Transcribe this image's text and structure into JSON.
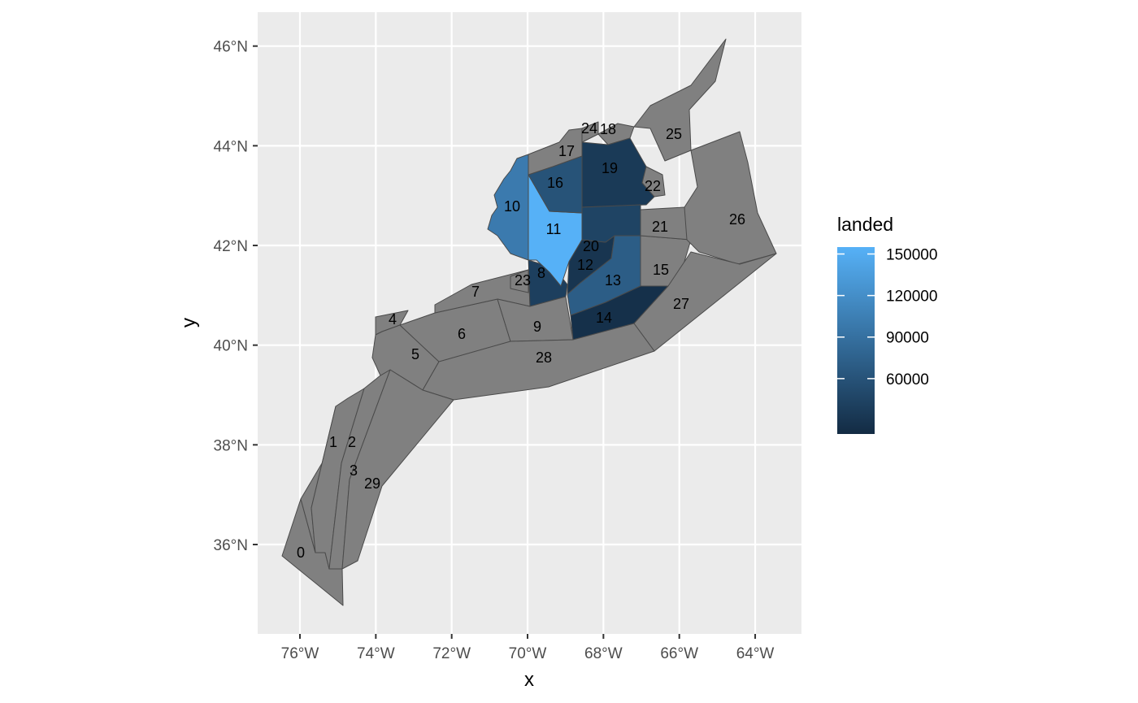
{
  "map": {
    "x_title": "x",
    "y_title": "y",
    "lon_ticks": [
      {
        "value": -76,
        "label": "76°W"
      },
      {
        "value": -74,
        "label": "74°W"
      },
      {
        "value": -72,
        "label": "72°W"
      },
      {
        "value": -70,
        "label": "70°W"
      },
      {
        "value": -68,
        "label": "68°W"
      },
      {
        "value": -66,
        "label": "66°W"
      },
      {
        "value": -64,
        "label": "64°W"
      }
    ],
    "lat_ticks": [
      {
        "value": 36,
        "label": "36°N"
      },
      {
        "value": 38,
        "label": "38°N"
      },
      {
        "value": 40,
        "label": "40°N"
      },
      {
        "value": 42,
        "label": "42°N"
      },
      {
        "value": 44,
        "label": "44°N"
      },
      {
        "value": 46,
        "label": "46°N"
      }
    ],
    "colors": {
      "panel_background": "#ebebeb",
      "grid": "#ffffff",
      "missing_fill": "#808080",
      "scale_low": "#132b43",
      "scale_high": "#56b1f7"
    },
    "legend": {
      "title": "landed",
      "min": 20000,
      "max": 155000,
      "breaks": [
        {
          "value": 150000,
          "label": "150000"
        },
        {
          "value": 120000,
          "label": "120000"
        },
        {
          "value": 90000,
          "label": "90000"
        },
        {
          "value": 60000,
          "label": "60000"
        }
      ]
    },
    "regions": [
      {
        "id": "0",
        "landed": null
      },
      {
        "id": "1",
        "landed": null
      },
      {
        "id": "2",
        "landed": null
      },
      {
        "id": "3",
        "landed": null
      },
      {
        "id": "4",
        "landed": null
      },
      {
        "id": "5",
        "landed": null
      },
      {
        "id": "6",
        "landed": null
      },
      {
        "id": "7",
        "landed": null
      },
      {
        "id": "8",
        "landed": 40000
      },
      {
        "id": "9",
        "landed": null
      },
      {
        "id": "10",
        "landed": 100000
      },
      {
        "id": "11",
        "landed": 155000
      },
      {
        "id": "12",
        "landed": 30000
      },
      {
        "id": "13",
        "landed": 70000
      },
      {
        "id": "14",
        "landed": 25000
      },
      {
        "id": "15",
        "landed": null
      },
      {
        "id": "16",
        "landed": 60000
      },
      {
        "id": "17",
        "landed": null
      },
      {
        "id": "18",
        "landed": null
      },
      {
        "id": "19",
        "landed": 35000
      },
      {
        "id": "20",
        "landed": 45000
      },
      {
        "id": "21",
        "landed": null
      },
      {
        "id": "22",
        "landed": null
      },
      {
        "id": "23",
        "landed": null
      },
      {
        "id": "24",
        "landed": null
      },
      {
        "id": "25",
        "landed": null
      },
      {
        "id": "26",
        "landed": null
      },
      {
        "id": "27",
        "landed": null
      },
      {
        "id": "28",
        "landed": null
      },
      {
        "id": "29",
        "landed": null
      }
    ]
  }
}
